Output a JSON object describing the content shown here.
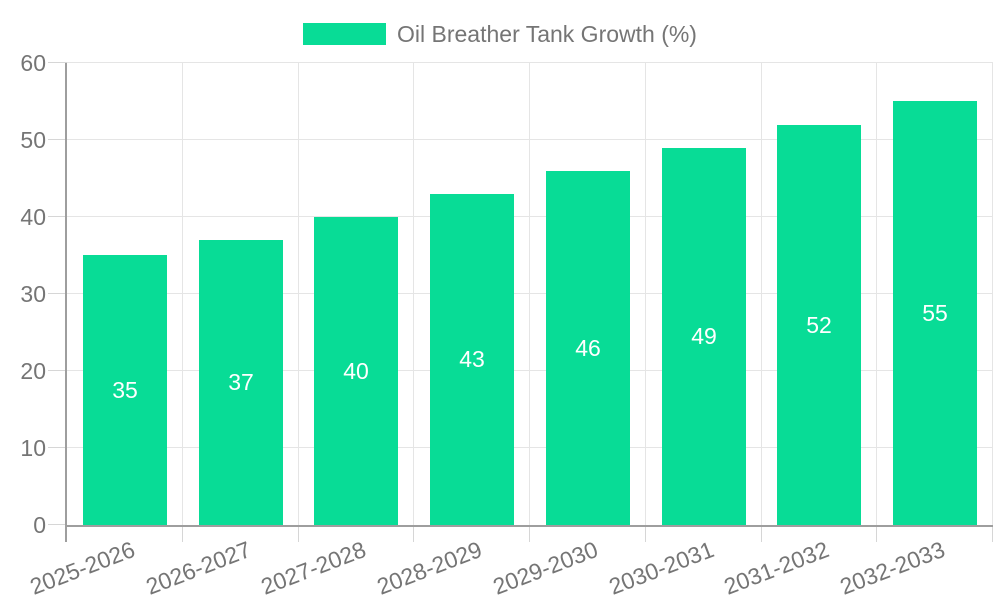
{
  "chart_data": {
    "type": "bar",
    "title": "Oil Breather Tank Growth (%)",
    "categories": [
      "2025-2026",
      "2026-2027",
      "2027-2028",
      "2028-2029",
      "2029-2030",
      "2030-2031",
      "2031-2032",
      "2032-2033"
    ],
    "values": [
      35,
      37,
      40,
      43,
      46,
      49,
      52,
      55
    ],
    "xlabel": "",
    "ylabel": "",
    "ylim": [
      0,
      60
    ],
    "yticks": [
      0,
      10,
      20,
      30,
      40,
      50,
      60
    ],
    "grid": true,
    "legend_position": "top",
    "bar_value_labels_visible": true,
    "x_label_rotation_deg": -21,
    "colors": {
      "bar": "#08DC96",
      "bar_value_label": "#FFFFFF",
      "axis_text": "#757575",
      "grid_line": "#E5E5E5",
      "tick_line": "#D6D6D6",
      "axis_line": "#9E9E9E",
      "background": "#FFFFFF"
    }
  }
}
